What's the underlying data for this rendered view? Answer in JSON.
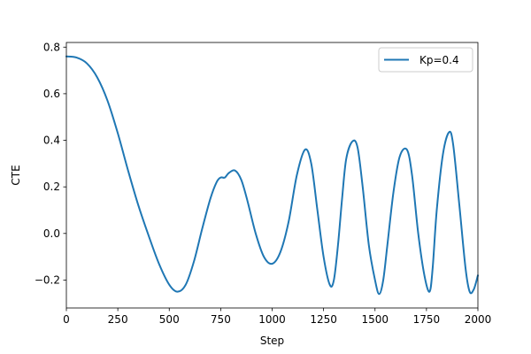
{
  "chart_data": {
    "type": "line",
    "title": "",
    "xlabel": "Step",
    "ylabel": "CTE",
    "xlim": [
      0,
      2000
    ],
    "ylim": [
      -0.32,
      0.82
    ],
    "xticks": [
      0,
      250,
      500,
      750,
      1000,
      1250,
      1500,
      1750,
      2000
    ],
    "xtick_labels": [
      "0",
      "250",
      "500",
      "750",
      "1000",
      "1250",
      "1500",
      "1750",
      "2000"
    ],
    "yticks": [
      -0.2,
      0.0,
      0.2,
      0.4,
      0.6,
      0.8
    ],
    "ytick_labels": [
      "−0.2",
      "0.0",
      "0.2",
      "0.4",
      "0.6",
      "0.8"
    ],
    "grid": false,
    "legend_position": "top-right",
    "series": [
      {
        "name": "Kp=0.4",
        "color": "#1f77b4",
        "x": [
          0,
          50,
          100,
          150,
          200,
          250,
          300,
          350,
          400,
          450,
          500,
          540,
          580,
          620,
          660,
          700,
          730,
          750,
          770,
          790,
          820,
          850,
          880,
          920,
          960,
          1000,
          1040,
          1080,
          1120,
          1160,
          1190,
          1220,
          1250,
          1280,
          1300,
          1320,
          1340,
          1360,
          1390,
          1415,
          1440,
          1470,
          1500,
          1520,
          1540,
          1560,
          1590,
          1620,
          1655,
          1680,
          1710,
          1740,
          1765,
          1780,
          1800,
          1830,
          1860,
          1880,
          1910,
          1940,
          1960,
          1980,
          2000
        ],
        "y": [
          0.76,
          0.755,
          0.73,
          0.67,
          0.57,
          0.43,
          0.27,
          0.12,
          -0.01,
          -0.13,
          -0.22,
          -0.25,
          -0.22,
          -0.12,
          0.02,
          0.15,
          0.22,
          0.24,
          0.24,
          0.26,
          0.27,
          0.23,
          0.14,
          0.0,
          -0.1,
          -0.13,
          -0.08,
          0.05,
          0.25,
          0.36,
          0.3,
          0.1,
          -0.1,
          -0.22,
          -0.2,
          -0.05,
          0.15,
          0.32,
          0.395,
          0.37,
          0.2,
          -0.05,
          -0.2,
          -0.26,
          -0.2,
          -0.05,
          0.18,
          0.33,
          0.36,
          0.25,
          0.0,
          -0.18,
          -0.25,
          -0.15,
          0.1,
          0.34,
          0.435,
          0.38,
          0.12,
          -0.15,
          -0.25,
          -0.24,
          -0.18
        ]
      }
    ]
  }
}
